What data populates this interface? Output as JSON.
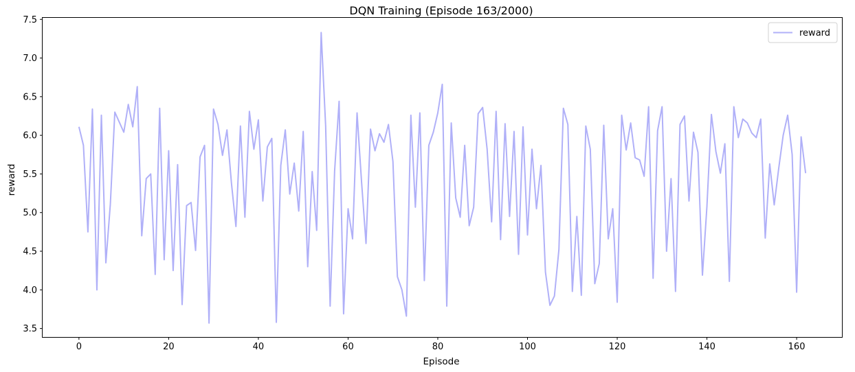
{
  "chart_data": {
    "type": "line",
    "title": "DQN Training (Episode 163/2000)",
    "xlabel": "Episode",
    "ylabel": "reward",
    "xlim": [
      -8.1,
      170.1
    ],
    "ylim": [
      3.39,
      7.52
    ],
    "xticks": [
      0,
      20,
      40,
      60,
      80,
      100,
      120,
      140,
      160
    ],
    "yticks": [
      3.5,
      4.0,
      4.5,
      5.0,
      5.5,
      6.0,
      6.5,
      7.0,
      7.5
    ],
    "ytick_labels": [
      "3.5",
      "4.0",
      "4.5",
      "5.0",
      "5.5",
      "6.0",
      "6.5",
      "7.0",
      "7.5"
    ],
    "grid": false,
    "legend_position": "top-right",
    "series": [
      {
        "name": "reward",
        "color": "#b0b0f8",
        "x": [
          0,
          1,
          2,
          3,
          4,
          5,
          6,
          7,
          8,
          9,
          10,
          11,
          12,
          13,
          14,
          15,
          16,
          17,
          18,
          19,
          20,
          21,
          22,
          23,
          24,
          25,
          26,
          27,
          28,
          29,
          30,
          31,
          32,
          33,
          34,
          35,
          36,
          37,
          38,
          39,
          40,
          41,
          42,
          43,
          44,
          45,
          46,
          47,
          48,
          49,
          50,
          51,
          52,
          53,
          54,
          55,
          56,
          57,
          58,
          59,
          60,
          61,
          62,
          63,
          64,
          65,
          66,
          67,
          68,
          69,
          70,
          71,
          72,
          73,
          74,
          75,
          76,
          77,
          78,
          79,
          80,
          81,
          82,
          83,
          84,
          85,
          86,
          87,
          88,
          89,
          90,
          91,
          92,
          93,
          94,
          95,
          96,
          97,
          98,
          99,
          100,
          101,
          102,
          103,
          104,
          105,
          106,
          107,
          108,
          109,
          110,
          111,
          112,
          113,
          114,
          115,
          116,
          117,
          118,
          119,
          120,
          121,
          122,
          123,
          124,
          125,
          126,
          127,
          128,
          129,
          130,
          131,
          132,
          133,
          134,
          135,
          136,
          137,
          138,
          139,
          140,
          141,
          142,
          143,
          144,
          145,
          146,
          147,
          148,
          149,
          150,
          151,
          152,
          153,
          154,
          155,
          156,
          157,
          158,
          159,
          160,
          161,
          162
        ],
        "values": [
          6.11,
          5.87,
          4.75,
          6.34,
          4.0,
          6.26,
          4.35,
          5.11,
          6.3,
          6.17,
          6.04,
          6.4,
          6.11,
          6.63,
          4.7,
          5.44,
          5.5,
          4.2,
          6.35,
          4.39,
          5.8,
          4.25,
          5.62,
          3.81,
          5.09,
          5.13,
          4.51,
          5.72,
          5.87,
          3.57,
          6.34,
          6.14,
          5.74,
          6.07,
          5.38,
          4.82,
          6.12,
          4.94,
          6.31,
          5.82,
          6.2,
          5.15,
          5.85,
          5.96,
          3.58,
          5.61,
          6.07,
          5.24,
          5.64,
          5.02,
          6.05,
          4.3,
          5.53,
          4.77,
          7.33,
          6.12,
          3.79,
          5.54,
          6.44,
          3.69,
          5.05,
          4.66,
          6.29,
          5.4,
          4.6,
          6.08,
          5.8,
          6.02,
          5.91,
          6.14,
          5.66,
          4.17,
          4.0,
          3.66,
          6.26,
          5.07,
          6.29,
          4.12,
          5.87,
          6.04,
          6.29,
          6.66,
          3.79,
          6.16,
          5.19,
          4.94,
          5.87,
          4.83,
          5.07,
          6.28,
          6.36,
          5.82,
          4.88,
          6.31,
          4.65,
          6.15,
          4.95,
          6.05,
          4.46,
          6.11,
          4.71,
          5.82,
          5.05,
          5.61,
          4.23,
          3.8,
          3.92,
          4.52,
          6.35,
          6.14,
          3.98,
          4.95,
          3.93,
          6.12,
          5.82,
          4.08,
          4.34,
          6.13,
          4.66,
          5.05,
          3.84,
          6.26,
          5.81,
          6.16,
          5.71,
          5.68,
          5.47,
          6.37,
          4.15,
          6.06,
          6.37,
          4.5,
          5.44,
          3.98,
          6.14,
          6.25,
          5.15,
          6.04,
          5.78,
          4.19,
          5.08,
          6.27,
          5.79,
          5.51,
          5.89,
          4.11,
          6.37,
          5.97,
          6.21,
          6.16,
          6.03,
          5.97,
          6.21,
          4.67,
          5.63,
          5.1,
          5.57,
          6.0,
          6.26,
          5.75,
          3.97,
          5.98,
          5.51
        ]
      }
    ]
  }
}
